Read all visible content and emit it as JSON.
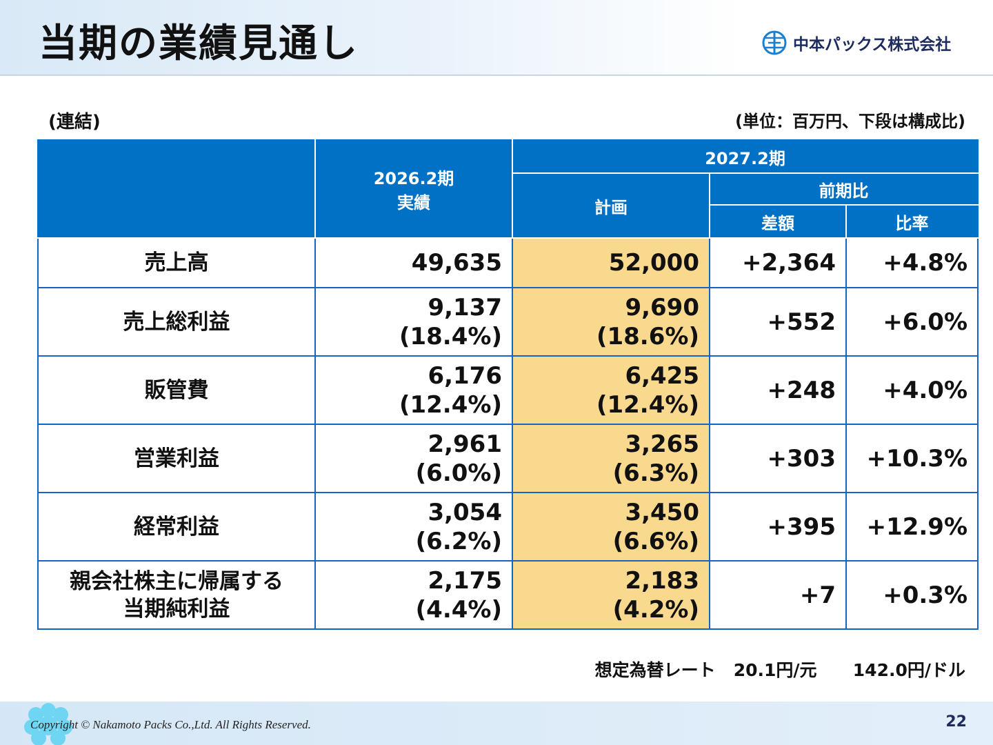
{
  "header": {
    "title": "当期の業績見通し",
    "company_logo_text": "中本パックス株式会社"
  },
  "labels": {
    "scope": "(連結)",
    "unit": "(単位：百万円、下段は構成比)"
  },
  "table": {
    "headers": {
      "prev_year": "2026.2期",
      "prev_year_sub": "実績",
      "curr_year": "2027.2期",
      "plan": "計画",
      "yoy": "前期比",
      "diff": "差額",
      "ratio": "比率"
    },
    "rows": [
      {
        "item": "売上高",
        "actual": "49,635",
        "actual_pct": "",
        "plan": "52,000",
        "plan_pct": "",
        "diff": "+2,364",
        "ratio": "+4.8%"
      },
      {
        "item": "売上総利益",
        "actual": "9,137",
        "actual_pct": "(18.4%)",
        "plan": "9,690",
        "plan_pct": "(18.6%)",
        "diff": "+552",
        "ratio": "+6.0%"
      },
      {
        "item": "販管費",
        "actual": "6,176",
        "actual_pct": "(12.4%)",
        "plan": "6,425",
        "plan_pct": "(12.4%)",
        "diff": "+248",
        "ratio": "+4.0%"
      },
      {
        "item": "営業利益",
        "actual": "2,961",
        "actual_pct": "(6.0%)",
        "plan": "3,265",
        "plan_pct": "(6.3%)",
        "diff": "+303",
        "ratio": "+10.3%"
      },
      {
        "item": "経常利益",
        "actual": "3,054",
        "actual_pct": "(6.2%)",
        "plan": "3,450",
        "plan_pct": "(6.6%)",
        "diff": "+395",
        "ratio": "+12.9%"
      },
      {
        "item_line1": "親会社株主に帰属する",
        "item_line2": "当期純利益",
        "actual": "2,175",
        "actual_pct": "(4.4%)",
        "plan": "2,183",
        "plan_pct": "(4.2%)",
        "diff": "+7",
        "ratio": "+0.3%"
      }
    ]
  },
  "fx_rate": {
    "label": "想定為替レート",
    "cny": "20.1円/元",
    "usd": "142.0円/ドル"
  },
  "footer": {
    "copyright": "Copyright © Nakamoto Packs Co.,Ltd. All Rights Reserved.",
    "page_number": "22"
  },
  "colors": {
    "header_blue": "#0071c5",
    "plan_highlight": "#f9d98e",
    "border_blue": "#1565c0"
  }
}
